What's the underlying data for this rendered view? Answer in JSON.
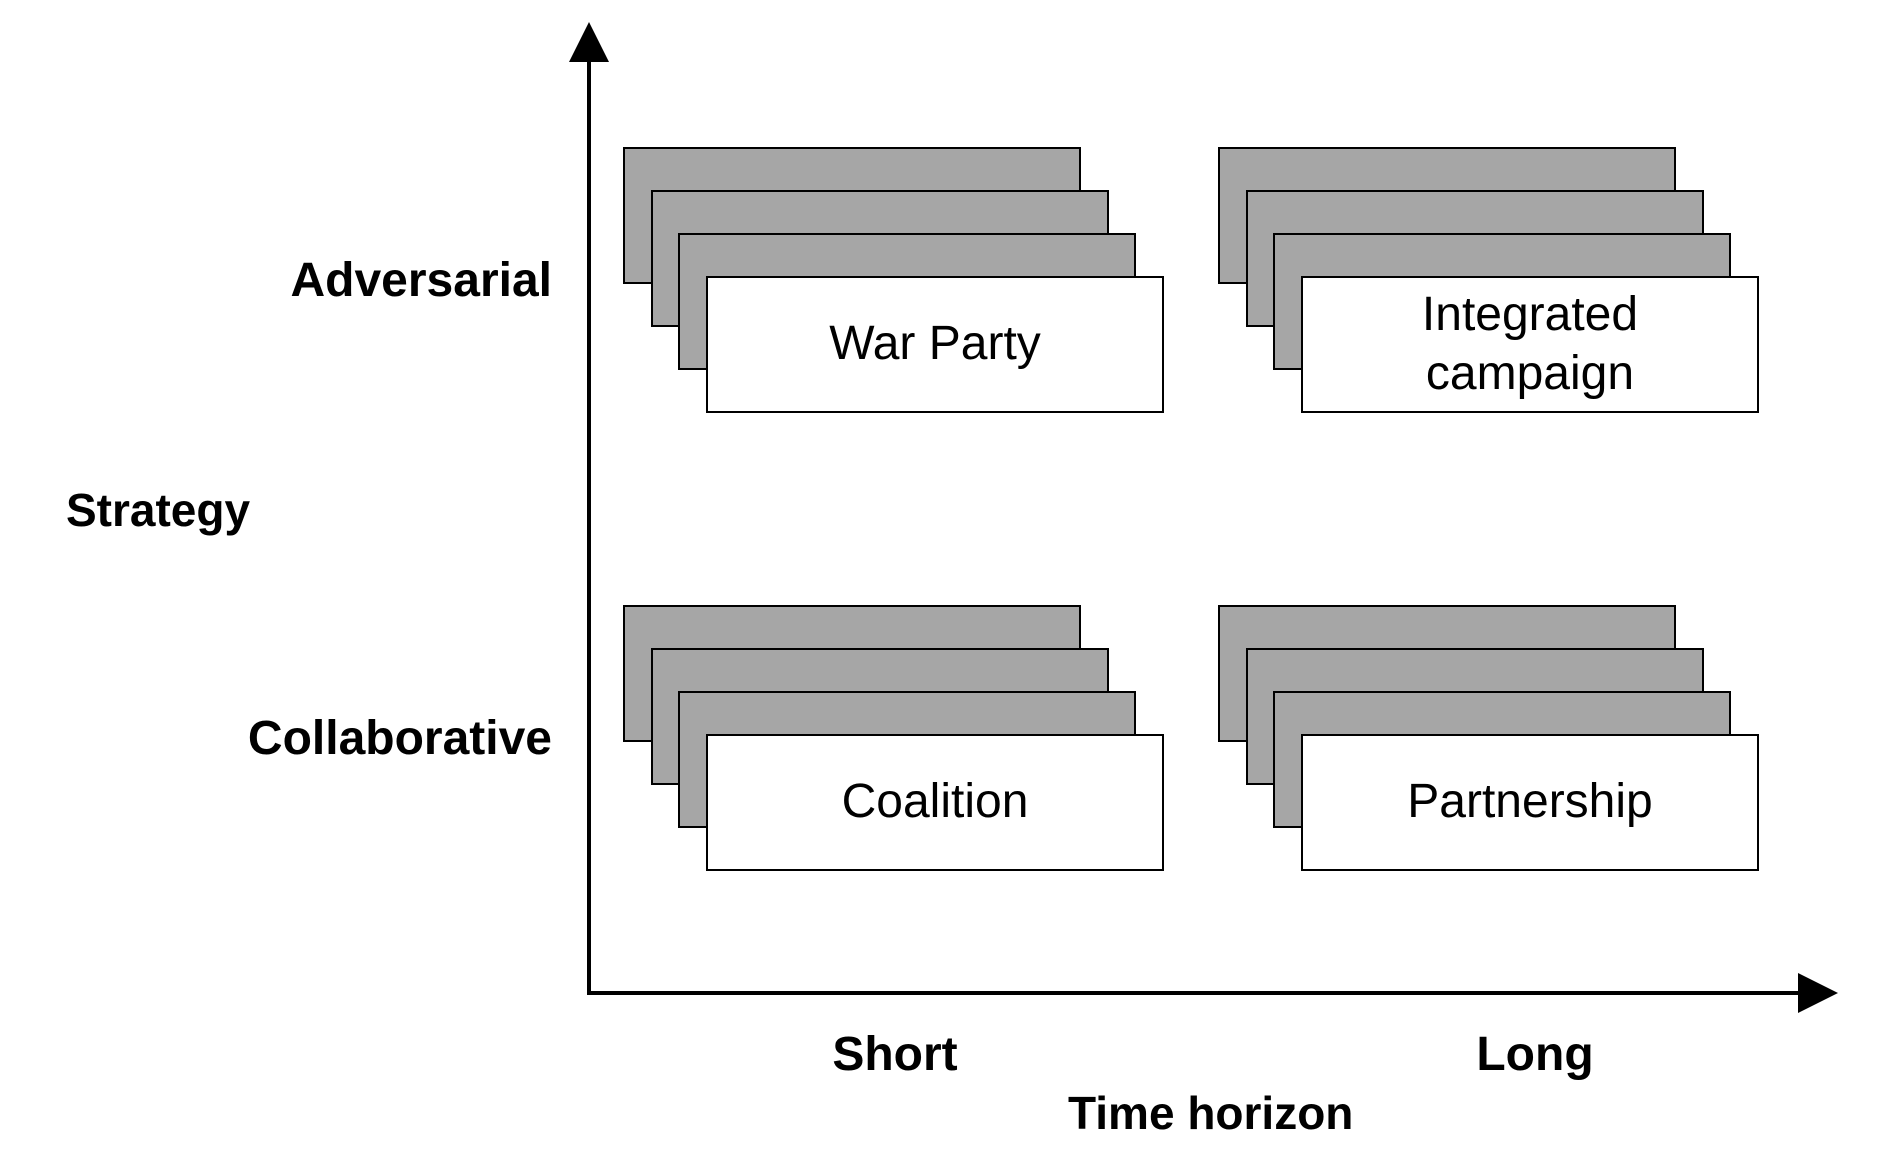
{
  "diagram": {
    "y_axis_title": "Strategy",
    "x_axis_title": "Time horizon",
    "rows": {
      "top": "Adversarial",
      "bottom": "Collaborative"
    },
    "columns": {
      "left": "Short",
      "right": "Long"
    },
    "cells": {
      "adversarial_short": "War Party",
      "adversarial_long": "Integrated\ncampaign",
      "collaborative_short": "Coalition",
      "collaborative_long": "Partnership"
    },
    "colors": {
      "stack_fill": "#a6a6a6",
      "card_fill": "#ffffff",
      "line": "#000000"
    }
  }
}
